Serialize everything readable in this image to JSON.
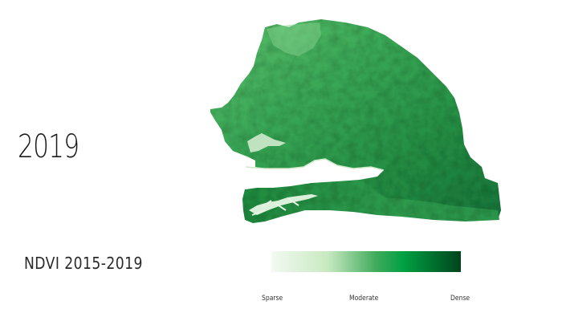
{
  "year": "2019",
  "title": "NDVI 2015-2019",
  "legend": {
    "labels": [
      "Sparse",
      "Moderate",
      "Dense"
    ],
    "colors": [
      "#f3faf2",
      "#c7e9c0",
      "#41ab5d",
      "#00a043",
      "#00441b"
    ]
  },
  "map": {
    "region": "Senegal",
    "river_color": "#ffffff"
  }
}
